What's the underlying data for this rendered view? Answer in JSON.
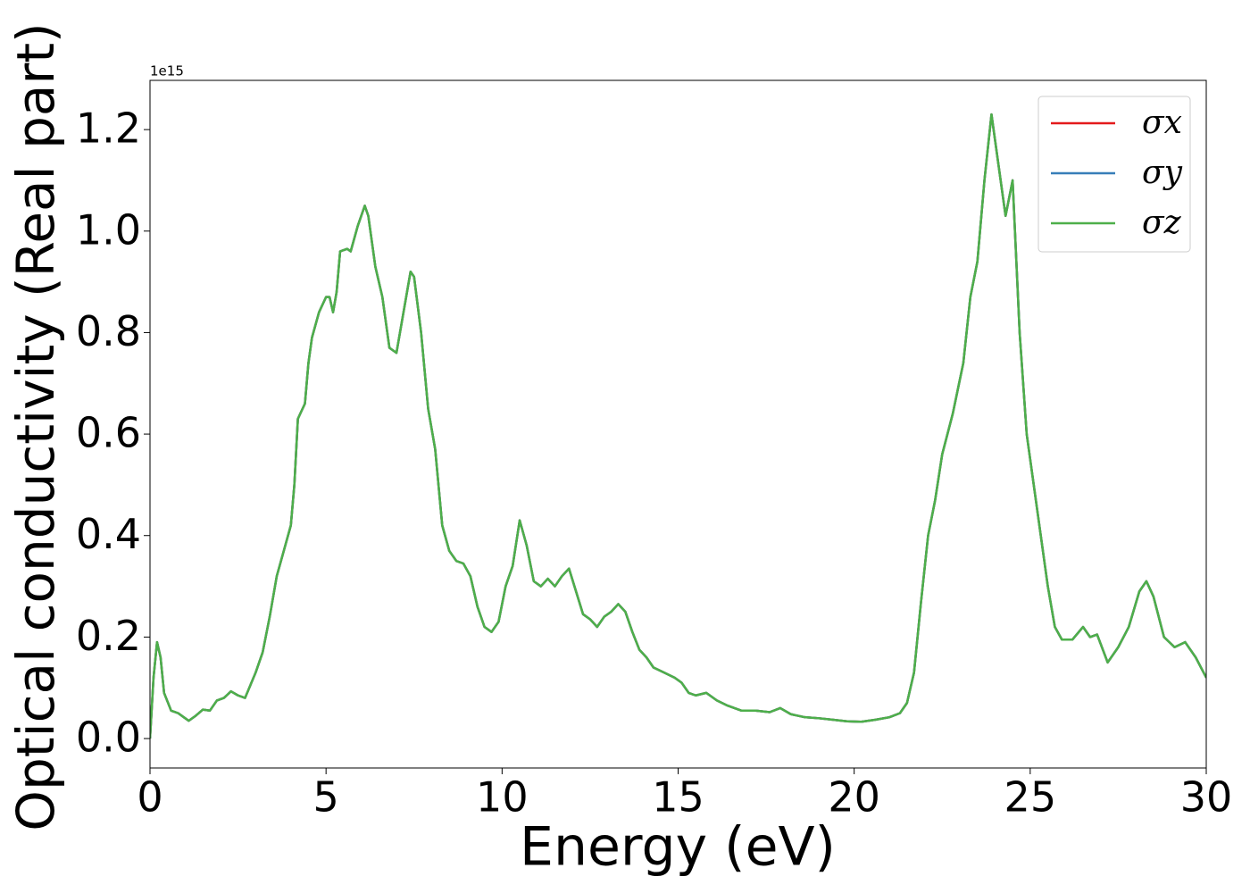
{
  "chart_data": {
    "type": "line",
    "x_label": "Energy (eV)",
    "y_label": "Optical conductivity (Real part)",
    "y_offset_text": "1e15",
    "xlim": [
      0,
      30
    ],
    "ylim": [
      -0.058,
      1.297
    ],
    "xticks": [
      0,
      5,
      10,
      15,
      20,
      25,
      30
    ],
    "yticks": [
      {
        "value": 0,
        "label": "0.0"
      },
      0.2,
      0.4,
      0.6,
      0.8,
      {
        "value": 1,
        "label": "1.0"
      },
      1.2
    ],
    "legend": "upper right",
    "x": [
      0,
      0.1,
      0.2,
      0.3,
      0.4,
      0.6,
      0.8,
      1.0,
      1.1,
      1.3,
      1.5,
      1.7,
      1.9,
      2.1,
      2.3,
      2.5,
      2.7,
      3.0,
      3.2,
      3.4,
      3.6,
      3.8,
      4.0,
      4.1,
      4.2,
      4.4,
      4.5,
      4.6,
      4.8,
      5.0,
      5.1,
      5.2,
      5.3,
      5.4,
      5.6,
      5.7,
      5.9,
      6.1,
      6.2,
      6.4,
      6.6,
      6.8,
      7.0,
      7.2,
      7.4,
      7.5,
      7.7,
      7.9,
      8.1,
      8.3,
      8.5,
      8.7,
      8.9,
      9.1,
      9.3,
      9.5,
      9.7,
      9.9,
      10.1,
      10.3,
      10.5,
      10.7,
      10.9,
      11.1,
      11.3,
      11.5,
      11.7,
      11.9,
      12.1,
      12.3,
      12.5,
      12.7,
      12.9,
      13.1,
      13.3,
      13.5,
      13.7,
      13.9,
      14.1,
      14.3,
      14.6,
      14.9,
      15.1,
      15.3,
      15.5,
      15.8,
      16.1,
      16.4,
      16.8,
      17.2,
      17.6,
      17.9,
      18.2,
      18.6,
      19.0,
      19.4,
      19.8,
      20.2,
      20.6,
      21.0,
      21.3,
      21.5,
      21.7,
      21.9,
      22.1,
      22.3,
      22.5,
      22.8,
      23.1,
      23.3,
      23.5,
      23.7,
      23.9,
      24.1,
      24.3,
      24.5,
      24.7,
      24.9,
      25.1,
      25.3,
      25.5,
      25.7,
      25.9,
      26.2,
      26.5,
      26.7,
      26.9,
      27.2,
      27.5,
      27.8,
      28.1,
      28.3,
      28.5,
      28.8,
      29.1,
      29.4,
      29.7,
      30
    ],
    "series": [
      {
        "name": "σx",
        "color": "#e41a1c",
        "values": [
          0.0,
          0.12,
          0.19,
          0.16,
          0.09,
          0.055,
          0.05,
          0.04,
          0.035,
          0.045,
          0.057,
          0.055,
          0.075,
          0.08,
          0.093,
          0.085,
          0.08,
          0.13,
          0.17,
          0.24,
          0.32,
          0.37,
          0.42,
          0.5,
          0.63,
          0.66,
          0.74,
          0.79,
          0.84,
          0.87,
          0.87,
          0.84,
          0.88,
          0.96,
          0.965,
          0.96,
          1.01,
          1.05,
          1.03,
          0.93,
          0.87,
          0.77,
          0.76,
          0.84,
          0.92,
          0.91,
          0.8,
          0.65,
          0.57,
          0.42,
          0.37,
          0.35,
          0.345,
          0.32,
          0.26,
          0.22,
          0.21,
          0.23,
          0.3,
          0.34,
          0.43,
          0.38,
          0.31,
          0.3,
          0.315,
          0.3,
          0.32,
          0.335,
          0.29,
          0.245,
          0.235,
          0.22,
          0.24,
          0.25,
          0.265,
          0.25,
          0.21,
          0.175,
          0.16,
          0.14,
          0.13,
          0.12,
          0.11,
          0.09,
          0.085,
          0.09,
          0.075,
          0.065,
          0.055,
          0.055,
          0.052,
          0.06,
          0.048,
          0.042,
          0.04,
          0.037,
          0.034,
          0.033,
          0.037,
          0.042,
          0.05,
          0.07,
          0.13,
          0.27,
          0.4,
          0.47,
          0.56,
          0.64,
          0.74,
          0.87,
          0.94,
          1.1,
          1.23,
          1.13,
          1.03,
          1.1,
          0.8,
          0.6,
          0.5,
          0.4,
          0.3,
          0.22,
          0.195,
          0.195,
          0.22,
          0.2,
          0.205,
          0.15,
          0.18,
          0.22,
          0.29,
          0.31,
          0.28,
          0.2,
          0.18,
          0.19,
          0.16,
          0.12
        ]
      },
      {
        "name": "σy",
        "color": "#377eb8",
        "values": [
          0.0,
          0.12,
          0.19,
          0.16,
          0.09,
          0.055,
          0.05,
          0.04,
          0.035,
          0.045,
          0.057,
          0.055,
          0.075,
          0.08,
          0.093,
          0.085,
          0.08,
          0.13,
          0.17,
          0.24,
          0.32,
          0.37,
          0.42,
          0.5,
          0.63,
          0.66,
          0.74,
          0.79,
          0.84,
          0.87,
          0.87,
          0.84,
          0.88,
          0.96,
          0.965,
          0.96,
          1.01,
          1.05,
          1.03,
          0.93,
          0.87,
          0.77,
          0.76,
          0.84,
          0.92,
          0.91,
          0.8,
          0.65,
          0.57,
          0.42,
          0.37,
          0.35,
          0.345,
          0.32,
          0.26,
          0.22,
          0.21,
          0.23,
          0.3,
          0.34,
          0.43,
          0.38,
          0.31,
          0.3,
          0.315,
          0.3,
          0.32,
          0.335,
          0.29,
          0.245,
          0.235,
          0.22,
          0.24,
          0.25,
          0.265,
          0.25,
          0.21,
          0.175,
          0.16,
          0.14,
          0.13,
          0.12,
          0.11,
          0.09,
          0.085,
          0.09,
          0.075,
          0.065,
          0.055,
          0.055,
          0.052,
          0.06,
          0.048,
          0.042,
          0.04,
          0.037,
          0.034,
          0.033,
          0.037,
          0.042,
          0.05,
          0.07,
          0.13,
          0.27,
          0.4,
          0.47,
          0.56,
          0.64,
          0.74,
          0.87,
          0.94,
          1.1,
          1.23,
          1.13,
          1.03,
          1.1,
          0.8,
          0.6,
          0.5,
          0.4,
          0.3,
          0.22,
          0.195,
          0.195,
          0.22,
          0.2,
          0.205,
          0.15,
          0.18,
          0.22,
          0.29,
          0.31,
          0.28,
          0.2,
          0.18,
          0.19,
          0.16,
          0.12
        ]
      },
      {
        "name": "σz",
        "color": "#4daf4a",
        "values": [
          0.0,
          0.12,
          0.19,
          0.16,
          0.09,
          0.055,
          0.05,
          0.04,
          0.035,
          0.045,
          0.057,
          0.055,
          0.075,
          0.08,
          0.093,
          0.085,
          0.08,
          0.13,
          0.17,
          0.24,
          0.32,
          0.37,
          0.42,
          0.5,
          0.63,
          0.66,
          0.74,
          0.79,
          0.84,
          0.87,
          0.87,
          0.84,
          0.88,
          0.96,
          0.965,
          0.96,
          1.01,
          1.05,
          1.03,
          0.93,
          0.87,
          0.77,
          0.76,
          0.84,
          0.92,
          0.91,
          0.8,
          0.65,
          0.57,
          0.42,
          0.37,
          0.35,
          0.345,
          0.32,
          0.26,
          0.22,
          0.21,
          0.23,
          0.3,
          0.34,
          0.43,
          0.38,
          0.31,
          0.3,
          0.315,
          0.3,
          0.32,
          0.335,
          0.29,
          0.245,
          0.235,
          0.22,
          0.24,
          0.25,
          0.265,
          0.25,
          0.21,
          0.175,
          0.16,
          0.14,
          0.13,
          0.12,
          0.11,
          0.09,
          0.085,
          0.09,
          0.075,
          0.065,
          0.055,
          0.055,
          0.052,
          0.06,
          0.048,
          0.042,
          0.04,
          0.037,
          0.034,
          0.033,
          0.037,
          0.042,
          0.05,
          0.07,
          0.13,
          0.27,
          0.4,
          0.47,
          0.56,
          0.64,
          0.74,
          0.87,
          0.94,
          1.1,
          1.23,
          1.13,
          1.03,
          1.1,
          0.8,
          0.6,
          0.5,
          0.4,
          0.3,
          0.22,
          0.195,
          0.195,
          0.22,
          0.2,
          0.205,
          0.15,
          0.18,
          0.22,
          0.29,
          0.31,
          0.28,
          0.2,
          0.18,
          0.19,
          0.16,
          0.12
        ]
      }
    ]
  }
}
